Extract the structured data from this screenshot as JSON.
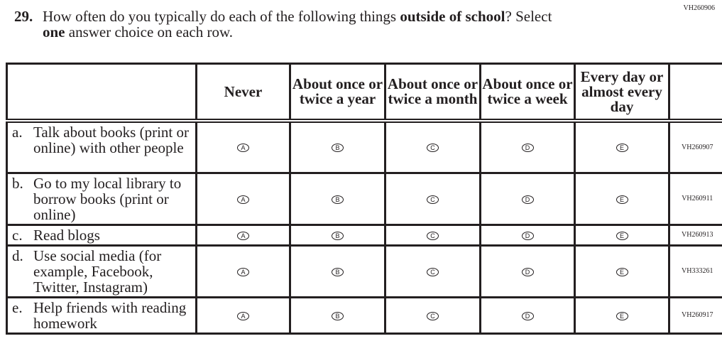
{
  "page_code": "VH260906",
  "question": {
    "number": "29.",
    "text_pre": "How often do you typically do each of the following things ",
    "text_bold": "outside of school",
    "text_post": "? Select",
    "line2_bold": "one",
    "line2_rest": " answer choice on each row."
  },
  "columns": [
    {
      "label": "Never",
      "bubble": "A"
    },
    {
      "label": "About once or twice a year",
      "bubble": "B"
    },
    {
      "label": "About once or twice a month",
      "bubble": "C"
    },
    {
      "label": "About once or twice a week",
      "bubble": "D"
    },
    {
      "label": "Every day or almost every day",
      "bubble": "E"
    }
  ],
  "rows": [
    {
      "letter": "a.",
      "text": "Talk about books (print or online) with other people",
      "code": "VH260907"
    },
    {
      "letter": "b.",
      "text": "Go to my local library to borrow books (print or online)",
      "code": "VH260911"
    },
    {
      "letter": "c.",
      "text": "Read blogs",
      "code": "VH260913"
    },
    {
      "letter": "d.",
      "text": "Use social media (for example, Facebook, Twitter, Instagram)",
      "code": "VH333261"
    },
    {
      "letter": "e.",
      "text": "Help friends with reading homework",
      "code": "VH260917"
    }
  ]
}
